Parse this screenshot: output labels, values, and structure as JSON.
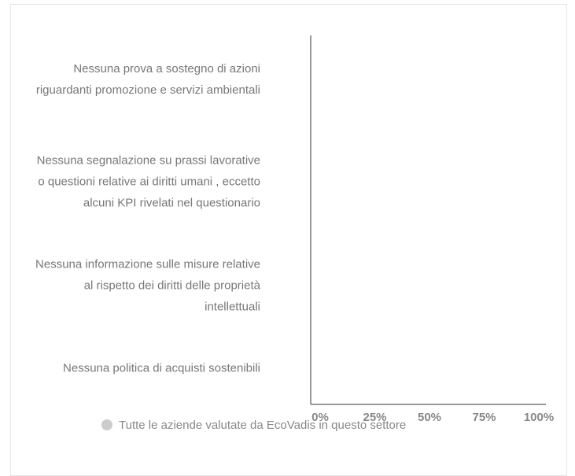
{
  "chart_data": {
    "type": "hbar",
    "categories": [
      "Nessuna prova a sostegno di azioni riguardanti promozione e servizi ambientali",
      "Nessuna segnalazione su prassi lavorative o questioni relative ai diritti umani , eccetto alcuni KPI rivelati nel questionario",
      "Nessuna informazione sulle misure relative al rispetto dei diritti delle proprietà intellettuali",
      "Nessuna politica di acquisti sostenibili"
    ],
    "series": [
      {
        "name": "Tutte le aziende valutate da EcoVadis in questo settore",
        "color": "#cccccc",
        "values": [
          0,
          0,
          0,
          0
        ]
      }
    ],
    "xlim": [
      0,
      100
    ],
    "xticks": [
      {
        "value": 0,
        "label": "0%"
      },
      {
        "value": 25,
        "label": "25%"
      },
      {
        "value": 50,
        "label": "50%"
      },
      {
        "value": 75,
        "label": "75%"
      },
      {
        "value": 100,
        "label": "100%"
      }
    ]
  }
}
